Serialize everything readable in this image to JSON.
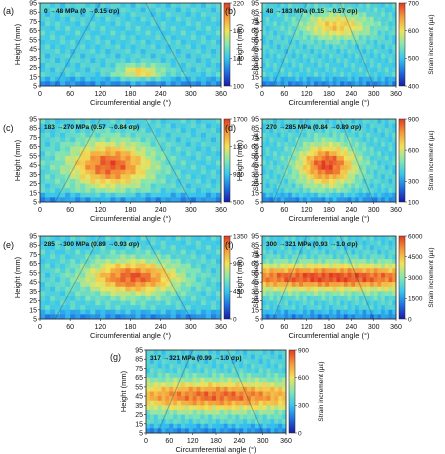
{
  "figure": {
    "xlabel": "Circumferential angle (°)",
    "ylabel": "Height (mm)",
    "cbar_label": "Strain increment (με)",
    "colormap": [
      "#1a1aa8",
      "#1f6fe0",
      "#38c6ee",
      "#86e6b0",
      "#f0e35a",
      "#f59a3a",
      "#e23a25"
    ]
  },
  "chart_data": [
    {
      "type": "heatmap",
      "panel": "(a)",
      "annotation": "0 →48 MPa (0 →0.15 σp)",
      "x_ticks": [
        0,
        60,
        120,
        180,
        240,
        300,
        360
      ],
      "y_ticks": [
        5,
        15,
        25,
        35,
        45,
        55,
        65,
        75,
        85,
        95
      ],
      "xlim": [
        0,
        360
      ],
      "ylim": [
        5,
        95
      ],
      "cbar_ticks": [
        100,
        140,
        180,
        220
      ],
      "cbar_range": [
        100,
        220
      ],
      "hot_zone": {
        "center_angle": 200,
        "center_height": 20,
        "angle_spread": 45,
        "height_spread": 8,
        "intensity": 0.55
      }
    },
    {
      "type": "heatmap",
      "panel": "(b)",
      "annotation": "48 →183 MPa (0.15 →0.57 σp)",
      "x_ticks": [
        0,
        60,
        120,
        180,
        240,
        300,
        360
      ],
      "y_ticks": [
        5,
        15,
        25,
        35,
        45,
        55,
        65,
        75,
        85,
        95
      ],
      "xlim": [
        0,
        360
      ],
      "ylim": [
        5,
        95
      ],
      "cbar_ticks": [
        400,
        500,
        600,
        700
      ],
      "cbar_range": [
        400,
        700
      ],
      "hot_zone": {
        "center_angle": 200,
        "center_height": 70,
        "angle_spread": 90,
        "height_spread": 14,
        "intensity": 0.6
      }
    },
    {
      "type": "heatmap",
      "panel": "(c)",
      "annotation": "183 →270 MPa (0.57 →0.84 σp)",
      "x_ticks": [
        0,
        60,
        120,
        180,
        240,
        300,
        360
      ],
      "y_ticks": [
        5,
        15,
        25,
        35,
        45,
        55,
        65,
        75,
        85,
        95
      ],
      "xlim": [
        0,
        360
      ],
      "ylim": [
        5,
        95
      ],
      "cbar_ticks": [
        500,
        900,
        1300,
        1700
      ],
      "cbar_range": [
        500,
        1700
      ],
      "hot_zone": {
        "center_angle": 140,
        "center_height": 45,
        "angle_spread": 80,
        "height_spread": 24,
        "intensity": 0.95
      }
    },
    {
      "type": "heatmap",
      "panel": "(d)",
      "annotation": "270 →285 MPa (0.84 →0.89 σp)",
      "x_ticks": [
        0,
        60,
        120,
        180,
        240,
        300,
        360
      ],
      "y_ticks": [
        5,
        15,
        25,
        35,
        45,
        55,
        65,
        75,
        85,
        95
      ],
      "xlim": [
        0,
        360
      ],
      "ylim": [
        5,
        95
      ],
      "cbar_ticks": [
        100,
        300,
        600,
        900
      ],
      "cbar_range": [
        100,
        900
      ],
      "hot_zone": {
        "center_angle": 175,
        "center_height": 45,
        "angle_spread": 75,
        "height_spread": 22,
        "intensity": 1.0
      }
    },
    {
      "type": "heatmap",
      "panel": "(e)",
      "annotation": "285 →300 MPa (0.89 →0.93 σp)",
      "x_ticks": [
        0,
        60,
        120,
        180,
        240,
        300,
        360
      ],
      "y_ticks": [
        5,
        15,
        25,
        35,
        45,
        55,
        65,
        75,
        85,
        95
      ],
      "xlim": [
        0,
        360
      ],
      "ylim": [
        5,
        95
      ],
      "cbar_ticks": [
        0,
        450,
        900,
        1350
      ],
      "cbar_range": [
        0,
        1350
      ],
      "hot_zone": {
        "center_angle": 185,
        "center_height": 50,
        "angle_spread": 90,
        "height_spread": 18,
        "intensity": 0.95
      }
    },
    {
      "type": "heatmap",
      "panel": "(f)",
      "annotation": "300 →321 MPa (0.93 →1.0 σp)",
      "x_ticks": [
        0,
        60,
        120,
        180,
        240,
        300,
        360
      ],
      "y_ticks": [
        5,
        15,
        25,
        35,
        45,
        55,
        65,
        75,
        85,
        95
      ],
      "xlim": [
        0,
        360
      ],
      "ylim": [
        5,
        95
      ],
      "cbar_ticks": [
        0,
        1500,
        3000,
        4500,
        6000
      ],
      "cbar_range": [
        0,
        6000
      ],
      "hot_zone": {
        "center_angle": 180,
        "center_height": 50,
        "angle_spread": 400,
        "height_spread": 14,
        "intensity": 1.0
      }
    },
    {
      "type": "heatmap",
      "panel": "(g)",
      "annotation": "317 →321 MPa (0.99 →1.0 σp)",
      "x_ticks": [
        0,
        60,
        120,
        180,
        240,
        300,
        360
      ],
      "y_ticks": [
        5,
        15,
        25,
        35,
        45,
        55,
        65,
        75,
        85,
        95
      ],
      "xlim": [
        0,
        360
      ],
      "ylim": [
        5,
        95
      ],
      "cbar_ticks": [
        0,
        300,
        600,
        900
      ],
      "cbar_range": [
        0,
        900
      ],
      "hot_zone": {
        "center_angle": 180,
        "center_height": 45,
        "angle_spread": 300,
        "height_spread": 16,
        "intensity": 0.9
      }
    }
  ]
}
